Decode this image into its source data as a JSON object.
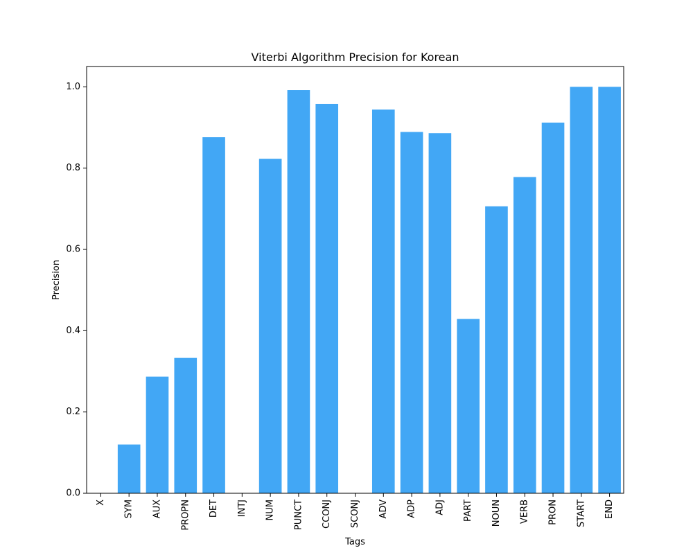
{
  "chart_data": {
    "type": "bar",
    "title": "Viterbi Algorithm Precision for Korean",
    "xlabel": "Tags",
    "ylabel": "Precision",
    "categories": [
      "X",
      "SYM",
      "AUX",
      "PROPN",
      "DET",
      "INTJ",
      "NUM",
      "PUNCT",
      "CCONJ",
      "SCONJ",
      "ADV",
      "ADP",
      "ADJ",
      "PART",
      "NOUN",
      "VERB",
      "PRON",
      "START",
      "END"
    ],
    "values": [
      0.0,
      0.12,
      0.287,
      0.333,
      0.876,
      0.0,
      0.823,
      0.992,
      0.958,
      0.0,
      0.944,
      0.889,
      0.886,
      0.429,
      0.706,
      0.778,
      0.912,
      1.0,
      1.0
    ],
    "ylim": [
      0,
      1.05
    ],
    "yticks": [
      0.0,
      0.2,
      0.4,
      0.6,
      0.8,
      1.0
    ],
    "ytick_labels": [
      "0.0",
      "0.2",
      "0.4",
      "0.6",
      "0.8",
      "1.0"
    ],
    "bar_color": "#42a7f5",
    "grid": false,
    "legend": "none"
  }
}
